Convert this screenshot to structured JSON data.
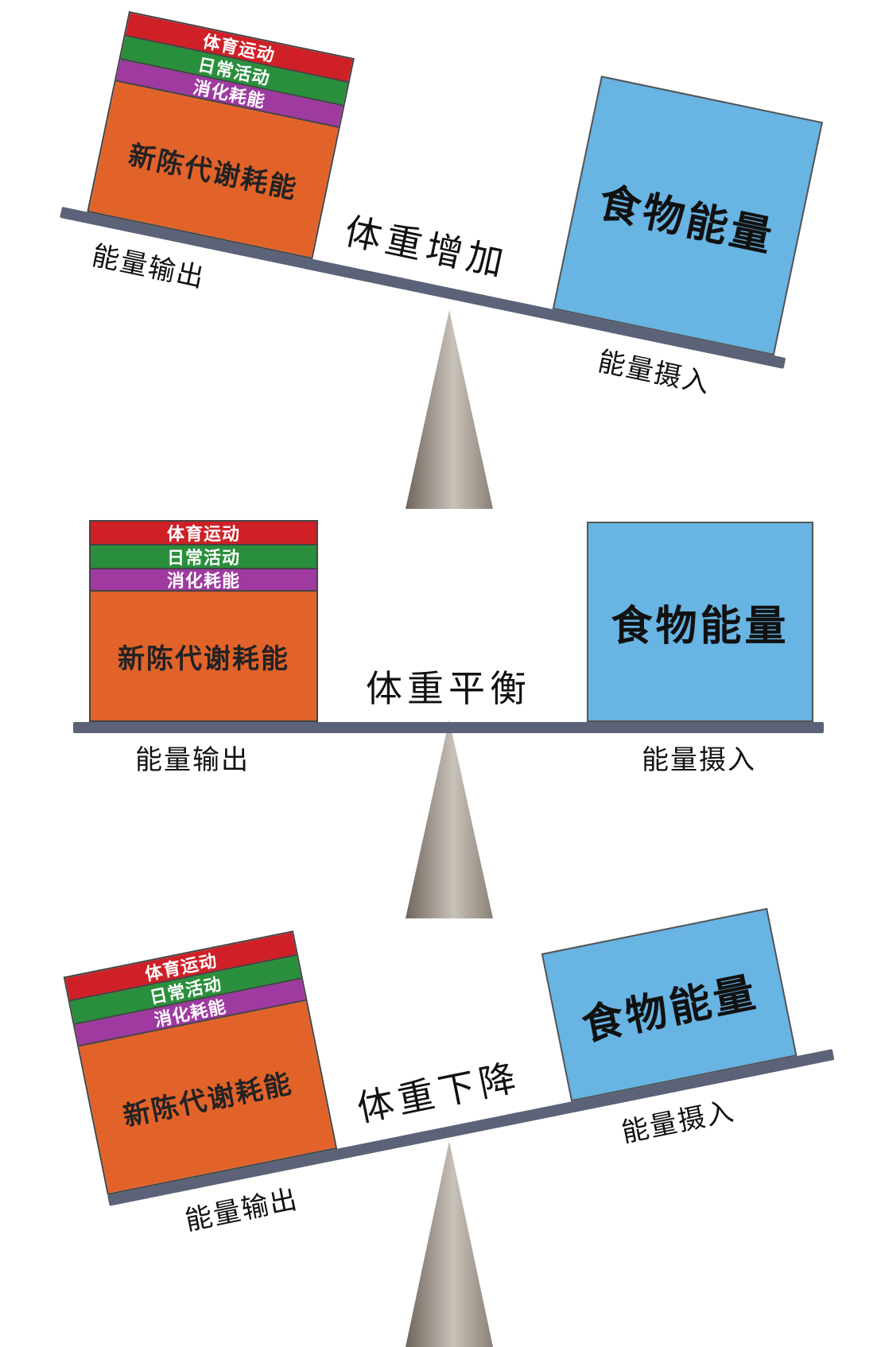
{
  "scenes": [
    {
      "state_label": "体重增加",
      "output_label": "能量输出",
      "input_label": "能量摄入",
      "food_label": "食物能量",
      "expenditure": [
        "体育运动",
        "日常活动",
        "消化耗能",
        "新陈代谢耗能"
      ]
    },
    {
      "state_label": "体重平衡",
      "output_label": "能量输出",
      "input_label": "能量摄入",
      "food_label": "食物能量",
      "expenditure": [
        "体育运动",
        "日常活动",
        "消化耗能",
        "新陈代谢耗能"
      ]
    },
    {
      "state_label": "体重下降",
      "output_label": "能量输出",
      "input_label": "能量摄入",
      "food_label": "食物能量",
      "expenditure": [
        "体育运动",
        "日常活动",
        "消化耗能",
        "新陈代谢耗能"
      ]
    }
  ],
  "colors": {
    "sport": "#cf2027",
    "daily": "#2a8f3c",
    "digestion": "#9e3aa0",
    "metabolism": "#e2632a",
    "food": "#68b4e3",
    "beam": "#5c6378"
  }
}
